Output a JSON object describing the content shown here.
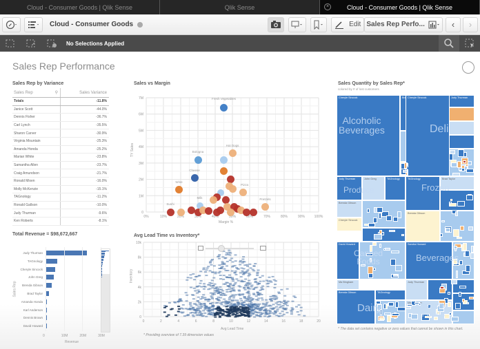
{
  "browser_tabs": [
    {
      "label": "Cloud - Consumer Goods | Qlik Sense",
      "active": false
    },
    {
      "label": "Qlik Sense",
      "active": false
    },
    {
      "label": "Cloud - Consumer Goods | Qlik Sense",
      "active": true
    }
  ],
  "toolbar": {
    "app_title": "Cloud - Consumer Goods",
    "edit_label": "Edit",
    "sheet_selector_label": "Sales Rep Perfo...",
    "icons": [
      "compass-icon",
      "list-menu-icon",
      "camera-icon",
      "presentation-icon",
      "bookmark-icon",
      "pencil-icon",
      "bar-chart-icon",
      "chevron-left-icon",
      "chevron-right-icon"
    ]
  },
  "selection_bar": {
    "status": "No Selections Applied",
    "icons": [
      "lasso-back-icon",
      "lasso-forward-icon",
      "clear-selections-icon",
      "search-icon",
      "select-tool-icon"
    ]
  },
  "sheet": {
    "title": "Sales Rep Performance"
  },
  "variance_table": {
    "title": "Sales Rep by Variance",
    "col1": "Sales Rep",
    "col2": "Sales Variance",
    "totals_label": "Totals",
    "totals_value": "-11.8%",
    "rows": [
      {
        "rep": "Janice Scott",
        "value": "-44.0%"
      },
      {
        "rep": "Dennis Fisher",
        "value": "-36.7%"
      },
      {
        "rep": "Carl Lynch",
        "value": "-35.5%"
      },
      {
        "rep": "Sharon Carver",
        "value": "-30.9%"
      },
      {
        "rep": "Virginia Mountain",
        "value": "-25.3%"
      },
      {
        "rep": "Amanda Honda",
        "value": "-25.2%"
      },
      {
        "rep": "Marian White",
        "value": "-23.8%"
      },
      {
        "rep": "Samantha Allen",
        "value": "-23.7%"
      },
      {
        "rep": "Craig Amundson",
        "value": "-21.7%"
      },
      {
        "rep": "Ronald Mixen",
        "value": "-16.0%"
      },
      {
        "rep": "Molly McKenzie",
        "value": "-15.1%"
      },
      {
        "rep": "TAGnology",
        "value": "-11.2%"
      },
      {
        "rep": "Ronald Gallson",
        "value": "-10.0%"
      },
      {
        "rep": "Judy Thurman",
        "value": "-9.6%"
      },
      {
        "rep": "Ken Roberts",
        "value": "-8.1%"
      }
    ]
  },
  "revenue_chart": {
    "title": "Total Revenue = $98,672,667",
    "ylabel": "Sales Rep",
    "xlabel": "Revenue",
    "ticks": [
      "0",
      "10M",
      "20M",
      "30M"
    ],
    "bars": [
      {
        "rep": "Judy Thurman",
        "value": 22.5
      },
      {
        "rep": "TAGnology",
        "value": 6.5
      },
      {
        "rep": "Cheryle Sincock",
        "value": 5.2
      },
      {
        "rep": "John Greg",
        "value": 4.4
      },
      {
        "rep": "Brenda Gibson",
        "value": 3.2
      },
      {
        "rep": "Brad Taylor",
        "value": 2.0
      },
      {
        "rep": "Amanda Honda",
        "value": 0.8
      },
      {
        "rep": "Karl Anderson",
        "value": 0.6
      },
      {
        "rep": "Dennis Brown",
        "value": 0.5
      },
      {
        "rep": "David Howard",
        "value": 0.4
      }
    ]
  },
  "scatter_chart": {
    "title": "Sales vs Margin",
    "xlabel": "Margin %",
    "ylabel": "TY Sales",
    "xticks": [
      "0%",
      "10%",
      "20%",
      "30%",
      "40%",
      "50%",
      "60%",
      "70%",
      "80%",
      "90%",
      "100%"
    ],
    "yticks": [
      "0",
      "1M",
      "2M",
      "3M",
      "4M",
      "5M",
      "6M",
      "7M"
    ],
    "labels": [
      "Fresh Vegetables",
      "Hot Dogs",
      "Bologna",
      "Cheese",
      "Wine",
      "Pizza",
      "Milk",
      "Sushi",
      "Pretzels"
    ]
  },
  "density_chart": {
    "title": "Avg Lead Time vs Inventory*",
    "xlabel": "Avg Lead Time",
    "ylabel": "Inventory",
    "xticks": [
      "0",
      "2",
      "4",
      "6",
      "8",
      "10",
      "12",
      "14",
      "16",
      "18",
      "20"
    ],
    "yticks": [
      "0",
      "2k",
      "4k",
      "6k",
      "8k",
      "10k"
    ],
    "footnote": "* Providing overview of 7.39 dimension values"
  },
  "treemap": {
    "title": "Sales Quantity by Sales Rep*",
    "subtitle": "colored by # of lost customers",
    "categories": [
      "Alcoholic Beverages",
      "Deli",
      "Produce",
      "Frozen",
      "Canned Foods",
      "Beverages",
      "Dairy",
      "Snack Foods",
      "Starchy Foods",
      "Canned Products"
    ],
    "footnote": "* The data set contains negative or zero values that cannot be shown in this chart."
  },
  "colors": {
    "accent": "#3a7ac4",
    "bar": "#4a77b4",
    "dark_orange": "#e07b2a",
    "light_orange": "#edb07a",
    "red": "#b5332a",
    "light_blue": "#a8cbee"
  }
}
